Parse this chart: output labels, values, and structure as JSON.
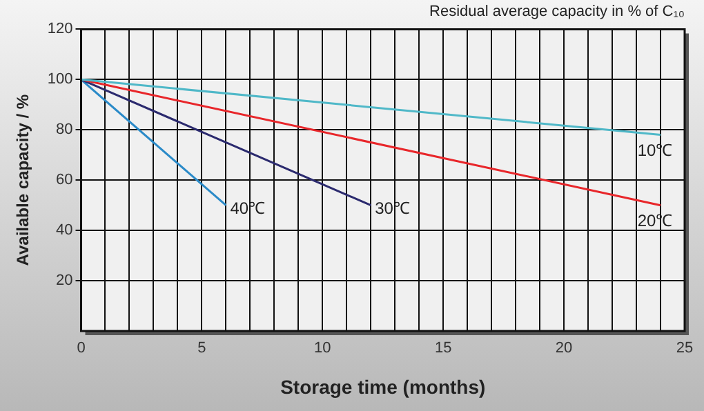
{
  "chart_data": {
    "type": "line",
    "title": "Residual average capacity in % of C₁₀",
    "xlabel": "Storage time (months)",
    "ylabel": "Available capacity / %",
    "xlim": [
      0,
      25
    ],
    "xticks": [
      0,
      {
        "value": 1,
        "label": null
      },
      {
        "value": 2,
        "label": null
      },
      {
        "value": 3,
        "label": null
      },
      {
        "value": 4,
        "label": null
      },
      5,
      {
        "value": 6,
        "label": null
      },
      {
        "value": 7,
        "label": null
      },
      {
        "value": 8,
        "label": null
      },
      {
        "value": 9,
        "label": null
      },
      10,
      {
        "value": 11,
        "label": null
      },
      {
        "value": 12,
        "label": null
      },
      {
        "value": 13,
        "label": null
      },
      {
        "value": 14,
        "label": null
      },
      15,
      {
        "value": 16,
        "label": null
      },
      {
        "value": 17,
        "label": null
      },
      {
        "value": 18,
        "label": null
      },
      {
        "value": 19,
        "label": null
      },
      20,
      {
        "value": 21,
        "label": null
      },
      {
        "value": 22,
        "label": null
      },
      {
        "value": 23,
        "label": null
      },
      {
        "value": 24,
        "label": null
      },
      25
    ],
    "ylim": [
      0,
      120
    ],
    "yticks": [
      20,
      40,
      60,
      80,
      100,
      120
    ],
    "grid": true,
    "legend": false,
    "marker": "none",
    "line_style": "solid",
    "series": [
      {
        "name": "10℃",
        "color": "#4fb8c8",
        "x": [
          0,
          24
        ],
        "values": [
          100,
          78
        ]
      },
      {
        "name": "20℃",
        "color": "#e8262a",
        "x": [
          0,
          24
        ],
        "values": [
          100,
          50
        ]
      },
      {
        "name": "30℃",
        "color": "#2b2a6e",
        "x": [
          0,
          12
        ],
        "values": [
          100,
          50
        ]
      },
      {
        "name": "40℃",
        "color": "#2a8ac8",
        "x": [
          0,
          6
        ],
        "values": [
          100,
          50
        ]
      }
    ]
  }
}
